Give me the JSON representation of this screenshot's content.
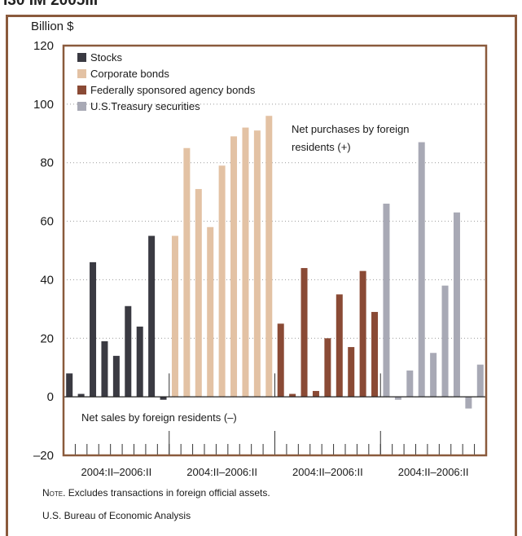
{
  "header": {
    "partial_title": "I30 IM 2005III"
  },
  "chart_data": {
    "type": "bar",
    "ylabel": "Billion $",
    "ylim": [
      -20,
      120
    ],
    "yticks": [
      -20,
      0,
      20,
      40,
      60,
      80,
      100,
      120
    ],
    "grid": true,
    "legend_position": "top-left",
    "series": [
      {
        "name": "Stocks",
        "color": "#3a3a42",
        "values": [
          8,
          1,
          46,
          19,
          14,
          31,
          24,
          55,
          -1
        ]
      },
      {
        "name": "Corporate bonds",
        "color": "#e3c2a4",
        "values": [
          55,
          85,
          71,
          58,
          79,
          89,
          92,
          91,
          96
        ]
      },
      {
        "name": "Federally sponsored agency bonds",
        "color": "#8a4a35",
        "values": [
          25,
          1,
          44,
          2,
          20,
          35,
          17,
          43,
          29
        ]
      },
      {
        "name": "U.S.Treasury securities",
        "color": "#a8a9b5",
        "values": [
          66,
          -1,
          9,
          87,
          15,
          38,
          63,
          -4,
          11
        ]
      }
    ],
    "group_labels": [
      "2004:II–2006:II",
      "2004:II–2006:II",
      "2004:II–2006:II",
      "2004:II–2006:II"
    ],
    "annotations": {
      "purchases": [
        "Net purchases by foreign",
        "residents (+)"
      ],
      "sales": "Net sales by foreign residents (–)"
    }
  },
  "notes": {
    "note_prefix": "Note.",
    "note_text": " Excludes transactions in foreign official assets.",
    "source": "U.S. Bureau of Economic Analysis"
  }
}
